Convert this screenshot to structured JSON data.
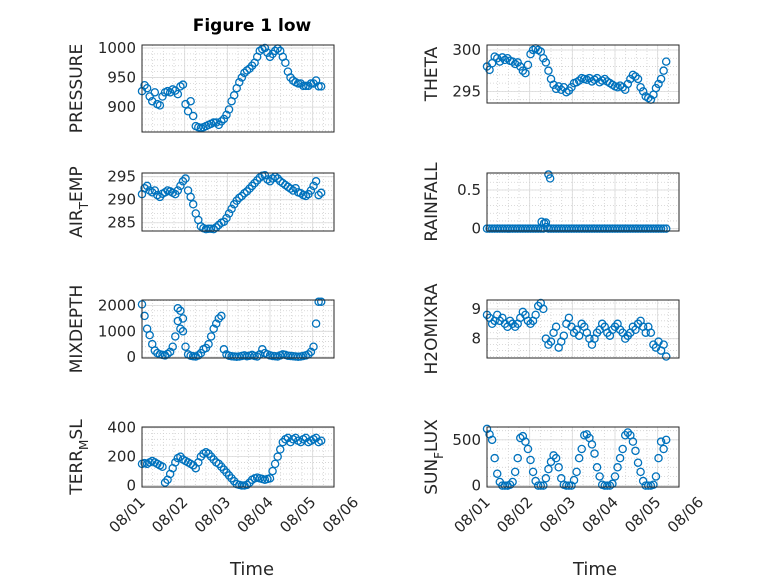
{
  "figure": {
    "title": "Figure 1 low",
    "xlabel": "Time",
    "marker_color": "#0072bd",
    "grid": "major-and-minor"
  },
  "chart_data": [
    {
      "type": "scatter",
      "ylabel": "PRESSURE",
      "ylabel_sub": "",
      "ylabel_tail": "",
      "yticks": [
        "900",
        "950",
        "1000"
      ],
      "ytick_values": [
        900,
        950,
        1000
      ],
      "ylim": [
        858,
        1005
      ],
      "xlim": [
        0,
        4.5
      ],
      "xtick_labels": [],
      "x": [
        0.0,
        0.06,
        0.12,
        0.18,
        0.24,
        0.3,
        0.36,
        0.42,
        0.48,
        0.54,
        0.6,
        0.66,
        0.72,
        0.78,
        0.84,
        0.9,
        0.96,
        1.02,
        1.08,
        1.14,
        1.2,
        1.26,
        1.32,
        1.38,
        1.44,
        1.5,
        1.56,
        1.62,
        1.68,
        1.74,
        1.8,
        1.86,
        1.92,
        1.98,
        2.04,
        2.1,
        2.16,
        2.22,
        2.28,
        2.34,
        2.4,
        2.46,
        2.52,
        2.58,
        2.64,
        2.7,
        2.76,
        2.82,
        2.88,
        2.94,
        3.0,
        3.06,
        3.12,
        3.18,
        3.24,
        3.3,
        3.36,
        3.42,
        3.48,
        3.54,
        3.6,
        3.66,
        3.72,
        3.78,
        3.84,
        3.9,
        3.96,
        4.02,
        4.08,
        4.14,
        4.2
      ],
      "y": [
        927,
        937,
        932,
        918,
        910,
        925,
        905,
        903,
        918,
        925,
        927,
        925,
        930,
        928,
        922,
        935,
        938,
        905,
        893,
        910,
        885,
        868,
        866,
        865,
        866,
        868,
        870,
        872,
        874,
        874,
        870,
        876,
        880,
        887,
        896,
        910,
        920,
        932,
        942,
        950,
        958,
        962,
        965,
        970,
        975,
        985,
        995,
        998,
        1000,
        992,
        985,
        990,
        995,
        999,
        995,
        985,
        975,
        960,
        950,
        945,
        942,
        940,
        940,
        936,
        936,
        936,
        940,
        940,
        945,
        935,
        935
      ]
    },
    {
      "type": "scatter",
      "ylabel": "THETA",
      "ylabel_sub": "",
      "ylabel_tail": "",
      "yticks": [
        "295",
        "300"
      ],
      "ytick_values": [
        295,
        300
      ],
      "ylim": [
        293.6,
        300.6
      ],
      "xlim": [
        0,
        4.5
      ],
      "xtick_labels": [],
      "x": [
        0.0,
        0.06,
        0.12,
        0.18,
        0.24,
        0.3,
        0.36,
        0.42,
        0.48,
        0.54,
        0.6,
        0.66,
        0.72,
        0.78,
        0.84,
        0.9,
        0.96,
        1.02,
        1.08,
        1.14,
        1.2,
        1.26,
        1.32,
        1.38,
        1.44,
        1.5,
        1.56,
        1.62,
        1.68,
        1.74,
        1.8,
        1.86,
        1.92,
        1.98,
        2.04,
        2.1,
        2.16,
        2.22,
        2.28,
        2.34,
        2.4,
        2.46,
        2.52,
        2.58,
        2.64,
        2.7,
        2.76,
        2.82,
        2.88,
        2.94,
        3.0,
        3.06,
        3.12,
        3.18,
        3.24,
        3.3,
        3.36,
        3.42,
        3.48,
        3.54,
        3.6,
        3.66,
        3.72,
        3.78,
        3.84,
        3.9,
        3.96,
        4.02,
        4.08,
        4.14,
        4.2
      ],
      "y": [
        298.0,
        297.6,
        298.4,
        299.2,
        299.0,
        298.6,
        299.1,
        298.8,
        299.0,
        298.7,
        298.6,
        298.3,
        298.5,
        298.0,
        297.5,
        297.2,
        298.2,
        299.5,
        300.0,
        300.2,
        300.0,
        299.8,
        299.0,
        298.5,
        297.5,
        296.5,
        295.8,
        295.3,
        295.6,
        295.2,
        295.5,
        294.9,
        295.1,
        295.5,
        296.0,
        296.1,
        296.3,
        296.6,
        296.5,
        296.4,
        296.6,
        296.2,
        296.4,
        296.6,
        296.1,
        296.3,
        296.5,
        296.2,
        296.0,
        295.8,
        295.6,
        295.5,
        295.7,
        295.5,
        295.2,
        295.9,
        296.5,
        297.0,
        296.8,
        296.5,
        295.5,
        295.0,
        294.4,
        294.2,
        294.0,
        294.6,
        295.4,
        295.9,
        296.5,
        297.5,
        298.6
      ]
    },
    {
      "type": "scatter",
      "ylabel": "AIR",
      "ylabel_sub": "T",
      "ylabel_tail": "EMP",
      "yticks": [
        "285",
        "290",
        "295"
      ],
      "ytick_values": [
        285,
        290,
        295
      ],
      "ylim": [
        283.2,
        295.8
      ],
      "xlim": [
        0,
        4.5
      ],
      "xtick_labels": [],
      "x": [
        0.0,
        0.06,
        0.12,
        0.18,
        0.24,
        0.3,
        0.36,
        0.42,
        0.48,
        0.54,
        0.6,
        0.66,
        0.72,
        0.78,
        0.84,
        0.9,
        0.96,
        1.02,
        1.08,
        1.14,
        1.2,
        1.26,
        1.32,
        1.38,
        1.44,
        1.5,
        1.56,
        1.62,
        1.68,
        1.74,
        1.8,
        1.86,
        1.92,
        1.98,
        2.04,
        2.1,
        2.16,
        2.22,
        2.28,
        2.34,
        2.4,
        2.46,
        2.52,
        2.58,
        2.64,
        2.7,
        2.76,
        2.82,
        2.88,
        2.94,
        3.0,
        3.06,
        3.12,
        3.18,
        3.24,
        3.3,
        3.36,
        3.42,
        3.48,
        3.54,
        3.6,
        3.66,
        3.72,
        3.78,
        3.84,
        3.9,
        3.96,
        4.02,
        4.08,
        4.14,
        4.2
      ],
      "y": [
        291.2,
        292.5,
        293.0,
        292.0,
        291.6,
        292.0,
        291.0,
        290.6,
        291.3,
        291.6,
        292.0,
        291.8,
        291.5,
        291.2,
        292.0,
        293.0,
        294.0,
        294.6,
        292.0,
        290.6,
        289.0,
        287.0,
        285.6,
        284.2,
        283.8,
        283.6,
        283.7,
        283.7,
        283.6,
        284.0,
        284.5,
        285.0,
        285.2,
        286.0,
        287.0,
        288.0,
        289.0,
        289.8,
        290.4,
        290.8,
        291.4,
        291.8,
        292.4,
        293.0,
        293.6,
        294.2,
        294.8,
        295.2,
        295.3,
        294.4,
        294.0,
        294.6,
        295.0,
        294.6,
        294.0,
        293.6,
        293.2,
        292.8,
        292.4,
        292.0,
        292.5,
        291.6,
        291.4,
        291.0,
        290.8,
        291.2,
        292.0,
        293.0,
        294.0,
        291.0,
        291.5
      ]
    },
    {
      "type": "scatter",
      "ylabel": "RAINFALL",
      "ylabel_sub": "",
      "ylabel_tail": "",
      "yticks": [
        "0",
        "0.5"
      ],
      "ytick_values": [
        0,
        0.5
      ],
      "ylim": [
        -0.03,
        0.72
      ],
      "xlim": [
        0,
        4.5
      ],
      "xtick_labels": [],
      "x": [
        0.0,
        0.06,
        0.12,
        0.18,
        0.24,
        0.3,
        0.36,
        0.42,
        0.48,
        0.54,
        0.6,
        0.66,
        0.72,
        0.78,
        0.84,
        0.9,
        0.96,
        1.02,
        1.08,
        1.14,
        1.2,
        1.26,
        1.32,
        1.38,
        1.44,
        1.5,
        1.56,
        1.62,
        1.68,
        1.74,
        1.8,
        1.86,
        1.92,
        1.98,
        2.04,
        2.1,
        2.16,
        2.22,
        2.28,
        2.34,
        2.4,
        2.46,
        2.52,
        2.58,
        2.64,
        2.7,
        2.76,
        2.82,
        2.88,
        2.94,
        3.0,
        3.06,
        3.12,
        3.18,
        3.24,
        3.3,
        3.36,
        3.42,
        3.48,
        3.54,
        3.6,
        3.66,
        3.72,
        3.78,
        3.84,
        3.9,
        3.96,
        4.02,
        4.08,
        4.14,
        4.2,
        1.28,
        1.34,
        1.4,
        1.44,
        1.48
      ],
      "y": [
        0,
        0,
        0,
        0,
        0,
        0,
        0,
        0,
        0,
        0,
        0,
        0,
        0,
        0,
        0,
        0,
        0,
        0,
        0,
        0,
        0,
        0,
        0,
        0.08,
        0,
        0,
        0,
        0,
        0,
        0,
        0,
        0,
        0,
        0,
        0,
        0,
        0,
        0,
        0,
        0,
        0,
        0,
        0,
        0,
        0,
        0,
        0,
        0,
        0,
        0,
        0,
        0,
        0,
        0,
        0,
        0,
        0,
        0,
        0,
        0,
        0,
        0,
        0,
        0,
        0,
        0,
        0,
        0,
        0,
        0,
        0,
        0.09,
        0.07,
        0.02,
        0.7,
        0.65
      ]
    },
    {
      "type": "scatter",
      "ylabel": "MIXDEPTH",
      "ylabel_sub": "",
      "ylabel_tail": "",
      "yticks": [
        "0",
        "1000",
        "2000"
      ],
      "ytick_values": [
        0,
        1000,
        2000
      ],
      "ylim": [
        -40,
        2220
      ],
      "xlim": [
        0,
        4.5
      ],
      "xtick_labels": [],
      "x": [
        0.0,
        0.06,
        0.12,
        0.18,
        0.24,
        0.3,
        0.36,
        0.42,
        0.48,
        0.54,
        0.6,
        0.66,
        0.72,
        0.78,
        0.84,
        0.9,
        0.96,
        1.02,
        1.08,
        1.14,
        1.2,
        1.26,
        1.32,
        1.38,
        1.44,
        1.5,
        1.56,
        1.62,
        1.68,
        1.74,
        1.8,
        1.86,
        1.92,
        1.98,
        2.04,
        2.1,
        2.16,
        2.22,
        2.28,
        2.34,
        2.4,
        2.46,
        2.52,
        2.58,
        2.64,
        2.7,
        2.76,
        2.82,
        2.88,
        2.94,
        3.0,
        3.06,
        3.12,
        3.18,
        3.24,
        3.3,
        3.36,
        3.42,
        3.48,
        3.54,
        3.6,
        3.66,
        3.72,
        3.78,
        3.84,
        3.9,
        3.96,
        4.02,
        4.08,
        4.14,
        4.2,
        0.84,
        0.96,
        0.9
      ],
      "y": [
        2050,
        1600,
        1100,
        850,
        500,
        250,
        150,
        100,
        80,
        60,
        120,
        200,
        400,
        800,
        1400,
        1800,
        1000,
        400,
        100,
        50,
        30,
        20,
        60,
        150,
        300,
        350,
        500,
        800,
        1100,
        1300,
        1500,
        1600,
        300,
        100,
        50,
        30,
        20,
        10,
        20,
        40,
        60,
        30,
        50,
        80,
        40,
        20,
        100,
        300,
        150,
        100,
        60,
        40,
        30,
        20,
        60,
        100,
        80,
        50,
        40,
        30,
        20,
        10,
        20,
        40,
        60,
        100,
        200,
        400,
        1300,
        2150,
        2150,
        1900,
        1500,
        1100
      ],
      "y_override_last": true
    },
    {
      "type": "scatter",
      "ylabel": "H2OMIXRA",
      "ylabel_sub": "",
      "ylabel_tail": "",
      "yticks": [
        "8",
        "9"
      ],
      "ytick_values": [
        8,
        9
      ],
      "ylim": [
        7.35,
        9.3
      ],
      "xlim": [
        0,
        4.5
      ],
      "xtick_labels": [],
      "x": [
        0.0,
        0.06,
        0.12,
        0.18,
        0.24,
        0.3,
        0.36,
        0.42,
        0.48,
        0.54,
        0.6,
        0.66,
        0.72,
        0.78,
        0.84,
        0.9,
        0.96,
        1.02,
        1.08,
        1.14,
        1.2,
        1.26,
        1.32,
        1.38,
        1.44,
        1.5,
        1.56,
        1.62,
        1.68,
        1.74,
        1.8,
        1.86,
        1.92,
        1.98,
        2.04,
        2.1,
        2.16,
        2.22,
        2.28,
        2.34,
        2.4,
        2.46,
        2.52,
        2.58,
        2.64,
        2.7,
        2.76,
        2.82,
        2.88,
        2.94,
        3.0,
        3.06,
        3.12,
        3.18,
        3.24,
        3.3,
        3.36,
        3.42,
        3.48,
        3.54,
        3.6,
        3.66,
        3.72,
        3.78,
        3.84,
        3.9,
        3.96,
        4.02,
        4.08,
        4.14,
        4.2
      ],
      "y": [
        8.8,
        8.7,
        8.5,
        8.6,
        8.8,
        8.6,
        8.7,
        8.5,
        8.4,
        8.6,
        8.5,
        8.4,
        8.5,
        8.7,
        8.9,
        8.8,
        8.6,
        8.5,
        8.6,
        8.8,
        9.1,
        9.2,
        9.0,
        8.0,
        7.8,
        7.9,
        8.2,
        8.4,
        7.7,
        7.9,
        8.1,
        8.5,
        8.7,
        8.4,
        8.2,
        8.3,
        8.1,
        8.5,
        8.4,
        8.2,
        8.0,
        7.8,
        8.0,
        8.2,
        8.3,
        8.5,
        8.4,
        8.2,
        8.1,
        8.3,
        8.4,
        8.5,
        8.3,
        8.2,
        8.0,
        8.1,
        8.2,
        8.4,
        8.3,
        8.5,
        8.6,
        8.4,
        8.2,
        8.4,
        8.2,
        7.8,
        7.7,
        7.9,
        7.6,
        7.8,
        7.4
      ]
    },
    {
      "type": "scatter",
      "ylabel": "TERR",
      "ylabel_sub": "M",
      "ylabel_tail": "SL",
      "yticks": [
        "0",
        "200",
        "400"
      ],
      "ytick_values": [
        0,
        200,
        400
      ],
      "ylim": [
        -10,
        405
      ],
      "xlim": [
        0,
        4.5
      ],
      "xtick_labels": [
        "08/01",
        "08/02",
        "08/03",
        "08/04",
        "08/05",
        "08/06"
      ],
      "x": [
        0.0,
        0.06,
        0.12,
        0.18,
        0.24,
        0.3,
        0.36,
        0.42,
        0.48,
        0.54,
        0.6,
        0.66,
        0.72,
        0.78,
        0.84,
        0.9,
        0.96,
        1.02,
        1.08,
        1.14,
        1.2,
        1.26,
        1.32,
        1.38,
        1.44,
        1.5,
        1.56,
        1.62,
        1.68,
        1.74,
        1.8,
        1.86,
        1.92,
        1.98,
        2.04,
        2.1,
        2.16,
        2.22,
        2.28,
        2.34,
        2.4,
        2.46,
        2.52,
        2.58,
        2.64,
        2.7,
        2.76,
        2.82,
        2.88,
        2.94,
        3.0,
        3.06,
        3.12,
        3.18,
        3.24,
        3.3,
        3.36,
        3.42,
        3.48,
        3.54,
        3.6,
        3.66,
        3.72,
        3.78,
        3.84,
        3.9,
        3.96,
        4.02,
        4.08,
        4.14,
        4.2
      ],
      "y": [
        150,
        155,
        150,
        160,
        170,
        160,
        150,
        140,
        130,
        20,
        40,
        80,
        120,
        160,
        190,
        200,
        180,
        170,
        160,
        150,
        140,
        120,
        160,
        200,
        220,
        230,
        220,
        200,
        180,
        160,
        150,
        130,
        110,
        90,
        70,
        50,
        30,
        10,
        5,
        0,
        0,
        5,
        20,
        40,
        50,
        55,
        50,
        45,
        40,
        45,
        50,
        100,
        150,
        200,
        250,
        300,
        320,
        330,
        300,
        320,
        330,
        310,
        300,
        320,
        330,
        300,
        310,
        320,
        330,
        300,
        310
      ]
    },
    {
      "type": "scatter",
      "ylabel": "SUN",
      "ylabel_sub": "F",
      "ylabel_tail": "LUX",
      "yticks": [
        "0",
        "500"
      ],
      "ytick_values": [
        0,
        500
      ],
      "ylim": [
        -15,
        640
      ],
      "xlim": [
        0,
        4.5
      ],
      "xtick_labels": [
        "08/01",
        "08/02",
        "08/03",
        "08/04",
        "08/05",
        "08/06"
      ],
      "x": [
        0.0,
        0.06,
        0.12,
        0.18,
        0.24,
        0.3,
        0.36,
        0.42,
        0.48,
        0.54,
        0.6,
        0.66,
        0.72,
        0.78,
        0.84,
        0.9,
        0.96,
        1.02,
        1.08,
        1.14,
        1.2,
        1.26,
        1.32,
        1.38,
        1.44,
        1.5,
        1.56,
        1.62,
        1.68,
        1.74,
        1.8,
        1.86,
        1.92,
        1.98,
        2.04,
        2.1,
        2.16,
        2.22,
        2.28,
        2.34,
        2.4,
        2.46,
        2.52,
        2.58,
        2.64,
        2.7,
        2.76,
        2.82,
        2.88,
        2.94,
        3.0,
        3.06,
        3.12,
        3.18,
        3.24,
        3.3,
        3.36,
        3.42,
        3.48,
        3.54,
        3.6,
        3.66,
        3.72,
        3.78,
        3.84,
        3.9,
        3.96,
        4.02,
        4.08,
        4.14,
        4.2
      ],
      "y": [
        620,
        560,
        500,
        300,
        130,
        40,
        0,
        0,
        0,
        10,
        40,
        150,
        300,
        520,
        540,
        480,
        400,
        280,
        150,
        50,
        0,
        0,
        0,
        80,
        180,
        260,
        330,
        300,
        200,
        80,
        10,
        0,
        0,
        0,
        60,
        150,
        300,
        400,
        550,
        560,
        520,
        450,
        350,
        200,
        100,
        10,
        0,
        0,
        0,
        20,
        100,
        200,
        300,
        400,
        550,
        580,
        550,
        480,
        380,
        250,
        150,
        50,
        0,
        0,
        0,
        10,
        100,
        300,
        480,
        400,
        500
      ]
    }
  ]
}
